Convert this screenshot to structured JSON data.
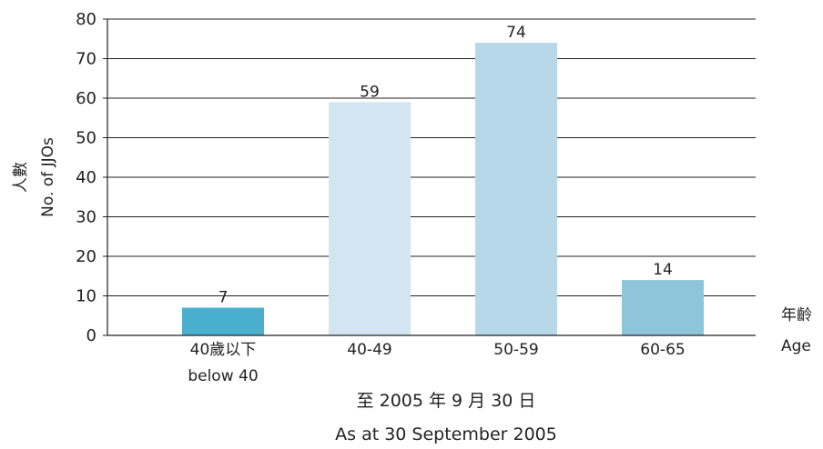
{
  "chart_data": {
    "type": "bar",
    "categories": [
      "40歲以下",
      "40-49",
      "50-59",
      "60-65"
    ],
    "categories_en": [
      "below 40",
      "",
      "",
      ""
    ],
    "values": [
      7,
      59,
      74,
      14
    ],
    "bar_colors": [
      "#49afcc",
      "#d2e5f0",
      "#b6d8e9",
      "#8fc5db"
    ],
    "ylabel_zh": "人數",
    "ylabel_en": "No. of JJOs",
    "xlabel_zh": "年齡",
    "xlabel_en": "Age",
    "date_zh": "至 2005 年 9 月 30 日",
    "date_en": "As at 30 September 2005",
    "ylim": [
      0,
      80
    ],
    "yticks": [
      0,
      10,
      20,
      30,
      40,
      50,
      60,
      70,
      80
    ],
    "grid": true
  }
}
